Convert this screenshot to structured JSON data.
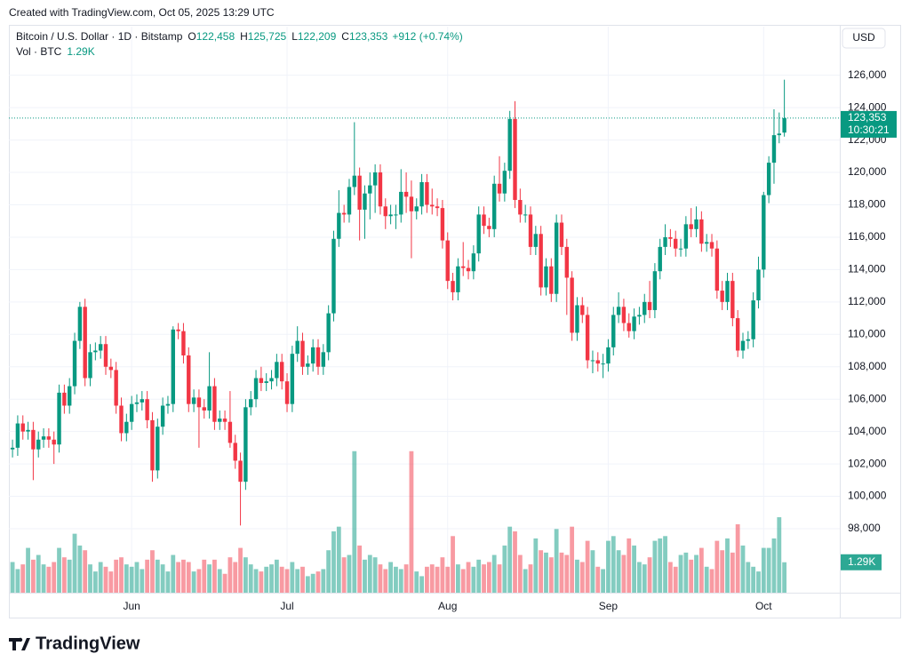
{
  "chart_data": {
    "type": "candlestick",
    "created": "Created with TradingView.com, Oct 05, 2025 13:29 UTC",
    "header": {
      "symbol": "Bitcoin / U.S. Dollar · 1D · Bitstamp",
      "fields": [
        {
          "key": "O",
          "value": "122,458"
        },
        {
          "key": "H",
          "value": "125,725"
        },
        {
          "key": "L",
          "value": "122,209"
        },
        {
          "key": "C",
          "value": "123,353"
        }
      ],
      "change": "+912 (+0.74%)"
    },
    "volume_header": {
      "label": "Vol · BTC",
      "value": "1.29K"
    },
    "currency": "USD",
    "countdown": "10:30:21",
    "brand": "TradingView",
    "up_color": "#089981",
    "down_color": "#f23645",
    "xlim": [
      -0.7,
      159.7
    ],
    "xticks": [
      {
        "value": 23,
        "label": "Jun"
      },
      {
        "value": 53,
        "label": "Jul"
      },
      {
        "value": 84,
        "label": "Aug"
      },
      {
        "value": 115,
        "label": "Sep"
      },
      {
        "value": 145,
        "label": "Oct"
      }
    ],
    "ylim": [
      94050,
      129000
    ],
    "yticks": [
      {
        "value": 98000,
        "label": "98,000"
      },
      {
        "value": 100000,
        "label": "100,000"
      },
      {
        "value": 102000,
        "label": "102,000"
      },
      {
        "value": 104000,
        "label": "104,000"
      },
      {
        "value": 106000,
        "label": "106,000"
      },
      {
        "value": 108000,
        "label": "108,000"
      },
      {
        "value": 110000,
        "label": "110,000"
      },
      {
        "value": 112000,
        "label": "112,000"
      },
      {
        "value": 114000,
        "label": "114,000"
      },
      {
        "value": 116000,
        "label": "116,000"
      },
      {
        "value": 118000,
        "label": "118,000"
      },
      {
        "value": 120000,
        "label": "120,000"
      },
      {
        "value": 122000,
        "label": "122,000"
      },
      {
        "value": 124000,
        "label": "124,000"
      },
      {
        "value": 126000,
        "label": "126,000"
      }
    ],
    "y2lim": [
      0,
      24
    ],
    "grid": true,
    "ohlc": [
      [
        102900,
        103500,
        102400,
        103000
      ],
      [
        103000,
        105000,
        102500,
        104500
      ],
      [
        104500,
        105000,
        103500,
        104000
      ],
      [
        104000,
        104600,
        103500,
        104100
      ],
      [
        104100,
        104600,
        101000,
        102900
      ],
      [
        102900,
        104000,
        102400,
        103500
      ],
      [
        103500,
        104200,
        103000,
        103700
      ],
      [
        103700,
        104200,
        103000,
        103500
      ],
      [
        103500,
        104000,
        102000,
        103200
      ],
      [
        103200,
        106900,
        102700,
        106400
      ],
      [
        106400,
        106900,
        105100,
        105600
      ],
      [
        105600,
        107300,
        105100,
        106800
      ],
      [
        106800,
        110100,
        106300,
        109600
      ],
      [
        109600,
        112000,
        109100,
        111700
      ],
      [
        111700,
        112200,
        106800,
        107300
      ],
      [
        107300,
        109400,
        106800,
        108900
      ],
      [
        108900,
        109500,
        108400,
        109000
      ],
      [
        109000,
        109900,
        108500,
        109400
      ],
      [
        109400,
        109900,
        107500,
        108000
      ],
      [
        108000,
        108500,
        107300,
        107800
      ],
      [
        107800,
        108300,
        105100,
        105600
      ],
      [
        105600,
        106100,
        103400,
        103900
      ],
      [
        103900,
        105100,
        103400,
        104600
      ],
      [
        104600,
        106200,
        104100,
        105700
      ],
      [
        105700,
        106300,
        105200,
        105800
      ],
      [
        105800,
        106500,
        105300,
        106000
      ],
      [
        106000,
        106500,
        104200,
        104700
      ],
      [
        104700,
        105200,
        100900,
        101600
      ],
      [
        101600,
        104800,
        101100,
        104300
      ],
      [
        104300,
        106100,
        103800,
        105600
      ],
      [
        105600,
        106200,
        105100,
        105700
      ],
      [
        105700,
        110500,
        105200,
        110300
      ],
      [
        110300,
        110700,
        109700,
        110200
      ],
      [
        110200,
        110700,
        108200,
        108700
      ],
      [
        108700,
        109200,
        105200,
        105700
      ],
      [
        105700,
        106600,
        105200,
        106100
      ],
      [
        106100,
        106600,
        103000,
        105500
      ],
      [
        105500,
        106000,
        104800,
        105300
      ],
      [
        105300,
        108900,
        104800,
        106800
      ],
      [
        106800,
        107300,
        104100,
        104600
      ],
      [
        104600,
        105300,
        104100,
        104800
      ],
      [
        104800,
        105300,
        104100,
        104600
      ],
      [
        104600,
        106500,
        103000,
        103300
      ],
      [
        103300,
        103800,
        101700,
        102200
      ],
      [
        102200,
        102700,
        98200,
        100900
      ],
      [
        100900,
        106000,
        100400,
        105500
      ],
      [
        105500,
        106500,
        105000,
        106000
      ],
      [
        106000,
        107800,
        105500,
        107300
      ],
      [
        107300,
        108000,
        106500,
        107000
      ],
      [
        107000,
        107600,
        106500,
        107100
      ],
      [
        107100,
        107800,
        106600,
        107300
      ],
      [
        107300,
        108800,
        106800,
        108300
      ],
      [
        108300,
        108800,
        106600,
        107100
      ],
      [
        107100,
        107600,
        105200,
        105700
      ],
      [
        105700,
        109300,
        105200,
        108800
      ],
      [
        108800,
        110500,
        108300,
        109600
      ],
      [
        109600,
        110100,
        107500,
        108000
      ],
      [
        108000,
        108700,
        107500,
        108200
      ],
      [
        108200,
        109700,
        107700,
        109200
      ],
      [
        109200,
        109700,
        107500,
        108000
      ],
      [
        108000,
        109400,
        107500,
        108900
      ],
      [
        108900,
        111800,
        108400,
        111300
      ],
      [
        111300,
        116400,
        110800,
        115900
      ],
      [
        115900,
        118900,
        115400,
        117500
      ],
      [
        117500,
        118000,
        116900,
        117400
      ],
      [
        117400,
        119600,
        116900,
        119100
      ],
      [
        119100,
        123100,
        118600,
        119800
      ],
      [
        119800,
        120300,
        115800,
        117700
      ],
      [
        117700,
        119200,
        115900,
        118700
      ],
      [
        118700,
        120000,
        117100,
        119200
      ],
      [
        119200,
        120500,
        117500,
        120000
      ],
      [
        120000,
        120500,
        117400,
        117900
      ],
      [
        117900,
        118400,
        116500,
        117300
      ],
      [
        117300,
        118000,
        116800,
        117400
      ],
      [
        117400,
        118000,
        116500,
        117400
      ],
      [
        117400,
        120200,
        116900,
        118800
      ],
      [
        118800,
        120000,
        117500,
        118500
      ],
      [
        118500,
        119500,
        114700,
        117600
      ],
      [
        117600,
        118400,
        117100,
        117900
      ],
      [
        117900,
        119900,
        117400,
        119400
      ],
      [
        119400,
        119900,
        117500,
        118000
      ],
      [
        118000,
        119000,
        117400,
        117900
      ],
      [
        117900,
        118400,
        117300,
        117800
      ],
      [
        117800,
        118300,
        115300,
        115800
      ],
      [
        115800,
        116300,
        112800,
        113300
      ],
      [
        113300,
        113800,
        112100,
        112600
      ],
      [
        112600,
        114700,
        112100,
        114200
      ],
      [
        114200,
        115700,
        113600,
        114100
      ],
      [
        114100,
        114600,
        113400,
        113900
      ],
      [
        113900,
        115500,
        113400,
        115000
      ],
      [
        115000,
        117900,
        114500,
        117400
      ],
      [
        117400,
        117900,
        116200,
        116700
      ],
      [
        116700,
        117200,
        116000,
        116500
      ],
      [
        116500,
        119800,
        116000,
        119300
      ],
      [
        119300,
        121000,
        118200,
        118700
      ],
      [
        118700,
        120600,
        118200,
        120100
      ],
      [
        120100,
        123800,
        119600,
        123300
      ],
      [
        123300,
        124400,
        117800,
        118300
      ],
      [
        118300,
        119000,
        116900,
        117400
      ],
      [
        117400,
        118000,
        116900,
        117400
      ],
      [
        117400,
        117900,
        114900,
        115400
      ],
      [
        115400,
        116700,
        114900,
        116200
      ],
      [
        116200,
        116700,
        112400,
        112900
      ],
      [
        112900,
        114700,
        112400,
        114200
      ],
      [
        114200,
        114700,
        112000,
        112500
      ],
      [
        112500,
        117400,
        112000,
        116900
      ],
      [
        116900,
        117400,
        114900,
        115400
      ],
      [
        115400,
        115900,
        111200,
        113500
      ],
      [
        113500,
        113900,
        109600,
        110100
      ],
      [
        110100,
        112300,
        109600,
        111800
      ],
      [
        111800,
        112300,
        110700,
        111200
      ],
      [
        111200,
        111700,
        107900,
        108400
      ],
      [
        108400,
        109000,
        107600,
        108400
      ],
      [
        108400,
        108900,
        107700,
        108200
      ],
      [
        108200,
        108800,
        107300,
        108200
      ],
      [
        108200,
        109700,
        107700,
        109200
      ],
      [
        109200,
        111700,
        108700,
        111200
      ],
      [
        111200,
        112600,
        110700,
        111700
      ],
      [
        111700,
        112200,
        110200,
        110700
      ],
      [
        110700,
        111300,
        109800,
        110200
      ],
      [
        110200,
        111600,
        109700,
        111100
      ],
      [
        111100,
        111700,
        110600,
        111200
      ],
      [
        111200,
        112500,
        110700,
        112000
      ],
      [
        112000,
        113300,
        111000,
        111500
      ],
      [
        111500,
        114400,
        111000,
        113900
      ],
      [
        113900,
        115900,
        113400,
        115400
      ],
      [
        115400,
        116800,
        114900,
        116000
      ],
      [
        116000,
        116500,
        115400,
        115900
      ],
      [
        115900,
        116400,
        114800,
        115300
      ],
      [
        115300,
        115900,
        114800,
        115300
      ],
      [
        115300,
        117300,
        114800,
        116800
      ],
      [
        116800,
        117800,
        116000,
        116500
      ],
      [
        116500,
        117900,
        116000,
        117100
      ],
      [
        117100,
        117600,
        115100,
        115600
      ],
      [
        115600,
        116200,
        115100,
        115700
      ],
      [
        115700,
        116200,
        114800,
        115300
      ],
      [
        115300,
        115800,
        112200,
        112700
      ],
      [
        112700,
        113300,
        111500,
        112000
      ],
      [
        112000,
        113800,
        111500,
        113300
      ],
      [
        113300,
        113800,
        110500,
        111000
      ],
      [
        111000,
        111500,
        108600,
        109000
      ],
      [
        109000,
        110100,
        108500,
        109600
      ],
      [
        109600,
        110200,
        109100,
        109700
      ],
      [
        109700,
        112600,
        109200,
        112100
      ],
      [
        112100,
        114800,
        111600,
        114000
      ],
      [
        114000,
        118800,
        113500,
        118600
      ],
      [
        118600,
        121000,
        118100,
        120600
      ],
      [
        120600,
        123900,
        119300,
        122300
      ],
      [
        122300,
        123700,
        121800,
        122400
      ],
      [
        122458,
        125725,
        122209,
        123353
      ]
    ],
    "close_value_labels": {
      "149": "123,353"
    },
    "volume": [
      1.3,
      1.0,
      1.2,
      1.9,
      1.4,
      1.6,
      1.2,
      1.1,
      1.3,
      1.9,
      1.5,
      1.4,
      2.5,
      2.0,
      1.8,
      1.2,
      0.9,
      1.3,
      1.1,
      0.9,
      1.4,
      1.5,
      1.2,
      1.1,
      1.3,
      1.0,
      1.4,
      1.8,
      1.4,
      1.2,
      0.9,
      1.6,
      1.3,
      1.4,
      1.3,
      0.9,
      1.0,
      1.4,
      1.2,
      1.4,
      1.0,
      0.8,
      1.5,
      1.3,
      1.9,
      1.5,
      1.2,
      1.0,
      0.9,
      1.1,
      1.2,
      1.4,
      1.1,
      1.0,
      1.3,
      1.0,
      1.1,
      0.7,
      0.8,
      0.9,
      1.0,
      1.8,
      2.6,
      2.8,
      1.5,
      1.6,
      6.0,
      2.0,
      1.4,
      1.6,
      1.5,
      1.2,
      1.0,
      1.3,
      1.1,
      1.0,
      1.2,
      6.0,
      0.9,
      0.7,
      1.1,
      1.2,
      1.1,
      1.5,
      1.1,
      2.4,
      1.2,
      1.0,
      1.3,
      1.1,
      1.4,
      1.2,
      1.3,
      1.6,
      1.2,
      2.0,
      2.8,
      2.6,
      1.6,
      1.0,
      1.2,
      2.3,
      1.8,
      1.7,
      1.5,
      2.7,
      1.7,
      1.6,
      2.8,
      1.4,
      1.3,
      2.2,
      1.8,
      1.1,
      1.0,
      2.2,
      2.4,
      1.8,
      1.6,
      2.3,
      2.0,
      1.3,
      1.2,
      1.5,
      2.2,
      2.3,
      2.4,
      1.3,
      1.1,
      1.6,
      1.7,
      1.4,
      1.6,
      1.9,
      1.1,
      1.0,
      2.2,
      1.8,
      2.3,
      1.7,
      2.9,
      2.0,
      1.3,
      1.1,
      0.9,
      1.9,
      1.9,
      2.3,
      3.2,
      1.29
    ],
    "volume_value_labels": {
      "149": "1.29K"
    }
  }
}
